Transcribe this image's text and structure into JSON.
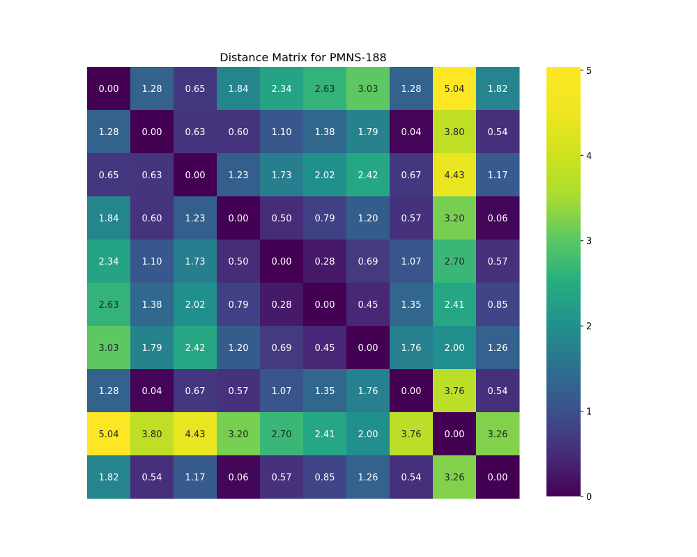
{
  "chart_data": {
    "type": "heatmap",
    "title": "Distance Matrix for PMNS-188",
    "xlabel": "",
    "ylabel": "",
    "colormap": "viridis",
    "vmin": 0,
    "vmax": 5.04,
    "annotation_format": "0.00",
    "matrix": [
      [
        0.0,
        1.28,
        0.65,
        1.84,
        2.34,
        2.63,
        3.03,
        1.28,
        5.04,
        1.82
      ],
      [
        1.28,
        0.0,
        0.63,
        0.6,
        1.1,
        1.38,
        1.79,
        0.04,
        3.8,
        0.54
      ],
      [
        0.65,
        0.63,
        0.0,
        1.23,
        1.73,
        2.02,
        2.42,
        0.67,
        4.43,
        1.17
      ],
      [
        1.84,
        0.6,
        1.23,
        0.0,
        0.5,
        0.79,
        1.2,
        0.57,
        3.2,
        0.06
      ],
      [
        2.34,
        1.1,
        1.73,
        0.5,
        0.0,
        0.28,
        0.69,
        1.07,
        2.7,
        0.57
      ],
      [
        2.63,
        1.38,
        2.02,
        0.79,
        0.28,
        0.0,
        0.45,
        1.35,
        2.41,
        0.85
      ],
      [
        3.03,
        1.79,
        2.42,
        1.2,
        0.69,
        0.45,
        0.0,
        1.76,
        2.0,
        1.26
      ],
      [
        1.28,
        0.04,
        0.67,
        0.57,
        1.07,
        1.35,
        1.76,
        0.0,
        3.76,
        0.54
      ],
      [
        5.04,
        3.8,
        4.43,
        3.2,
        2.7,
        2.41,
        2.0,
        3.76,
        0.0,
        3.26
      ],
      [
        1.82,
        0.54,
        1.17,
        0.06,
        0.57,
        0.85,
        1.26,
        0.54,
        3.26,
        0.0
      ]
    ],
    "colorbar": {
      "ticks": [
        "0",
        "1",
        "2",
        "3",
        "4",
        "5"
      ],
      "tick_values": [
        0,
        1,
        2,
        3,
        4,
        5
      ]
    },
    "grid": false
  }
}
